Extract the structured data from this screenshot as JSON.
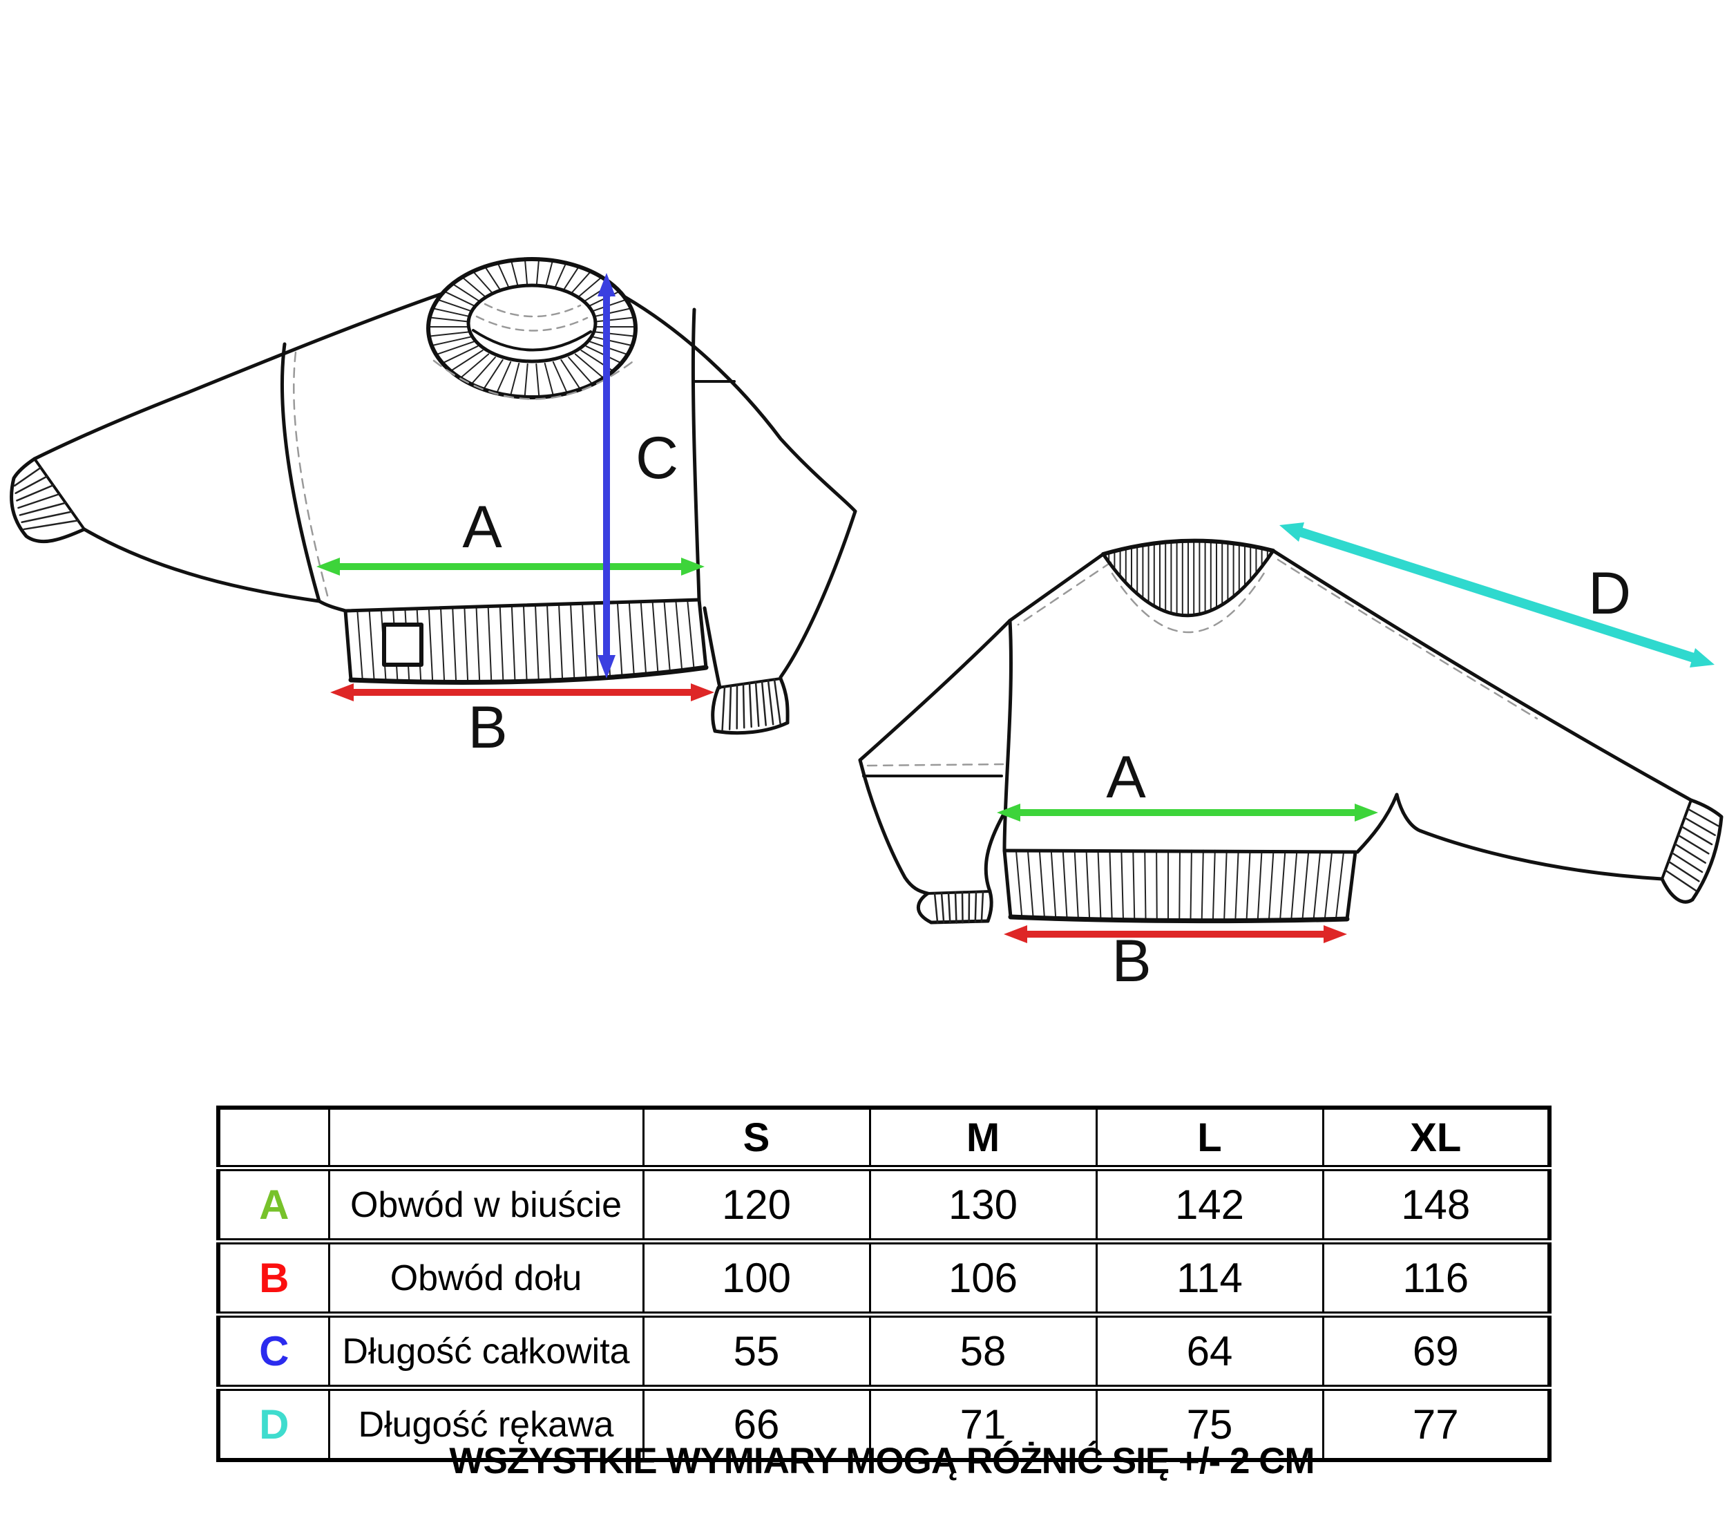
{
  "caption": "WSZYSTKIE WYMIARY MOGĄ RÓŻNIĆ SIĘ +/- 2 CM",
  "diagrams": {
    "front": {
      "label_a": "A",
      "label_b": "B",
      "label_c": "C"
    },
    "back": {
      "label_a": "A",
      "label_b": "B",
      "label_d": "D"
    }
  },
  "arrows": {
    "chest_color": "#3dd43a",
    "bottom_color": "#de2626",
    "length_color": "#3a3fe0",
    "sleeve_color": "#2fd9ce"
  },
  "table": {
    "size_headers": [
      "S",
      "M",
      "L",
      "XL"
    ],
    "rows": [
      {
        "letter": "A",
        "letter_color": "#77c22b",
        "label": "Obwód w biuście",
        "values": [
          "120",
          "130",
          "142",
          "148"
        ]
      },
      {
        "letter": "B",
        "letter_color": "#fb0f0f",
        "label": "Obwód dołu",
        "values": [
          "100",
          "106",
          "114",
          "116"
        ]
      },
      {
        "letter": "C",
        "letter_color": "#2b2bee",
        "label": "Długość całkowita",
        "values": [
          "55",
          "58",
          "64",
          "69"
        ]
      },
      {
        "letter": "D",
        "letter_color": "#3fdcce",
        "label": "Długość rękawa",
        "values": [
          "66",
          "71",
          "75",
          "77"
        ]
      }
    ]
  }
}
